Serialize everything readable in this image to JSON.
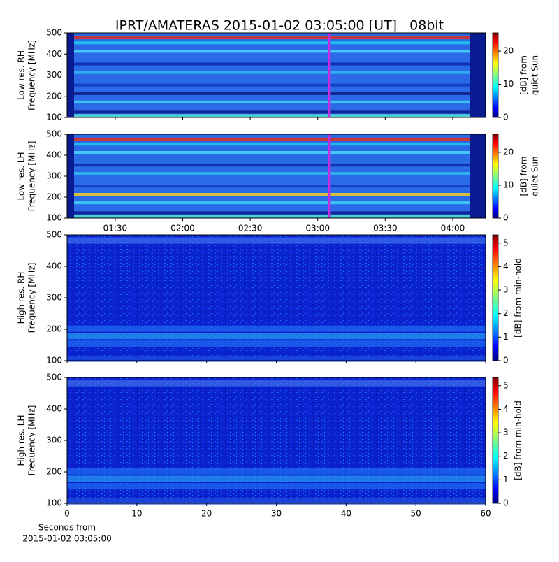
{
  "title": "IPRT/AMATERAS 2015-01-02 03:05:00 [UT]   08bit",
  "xlabel": [
    "Seconds from",
    "2015-01-02 03:05:00"
  ],
  "chart_data": [
    {
      "type": "heatmap",
      "ylabel": [
        "Low res. RH",
        "Frequency [MHz]"
      ],
      "ylim": [
        100,
        500
      ],
      "yticks": [
        100,
        200,
        300,
        400,
        500
      ],
      "xlim": [
        68.6,
        254.6
      ],
      "marker_x": 185,
      "marker_color": "#c030e0",
      "clim": [
        0,
        25.5
      ],
      "cticks": [
        0,
        10,
        20
      ],
      "clabel": [
        "[dB] from",
        "quiet Sun"
      ],
      "colormap": "jet"
    },
    {
      "type": "heatmap",
      "ylabel": [
        "Low res. LH",
        "Frequency [MHz]"
      ],
      "ylim": [
        100,
        500
      ],
      "yticks": [
        100,
        200,
        300,
        400,
        500
      ],
      "xlim": [
        68.6,
        254.6
      ],
      "marker_x": 185,
      "marker_color": "#c030e0",
      "xticks": [
        {
          "value": 90,
          "label": "01:30"
        },
        {
          "value": 120,
          "label": "02:00"
        },
        {
          "value": 150,
          "label": "02:30"
        },
        {
          "value": 180,
          "label": "03:00"
        },
        {
          "value": 210,
          "label": "03:30"
        },
        {
          "value": 240,
          "label": "04:00"
        }
      ],
      "clim": [
        0,
        25.5
      ],
      "cticks": [
        0,
        10,
        20
      ],
      "clabel": [
        "[dB] from",
        "quiet Sun"
      ],
      "colormap": "jet"
    },
    {
      "type": "heatmap",
      "ylabel": [
        "High res. RH",
        "Frequency [MHz]"
      ],
      "ylim": [
        100,
        500
      ],
      "yticks": [
        100,
        200,
        300,
        400,
        500
      ],
      "xlim": [
        0,
        60
      ],
      "clim": [
        0,
        5.35
      ],
      "cticks": [
        0,
        1,
        2,
        3,
        4,
        5
      ],
      "clabel": [
        "[dB] from min-hold"
      ],
      "colormap": "jet"
    },
    {
      "type": "heatmap",
      "ylabel": [
        "High res. LH",
        "Frequency [MHz]"
      ],
      "ylim": [
        100,
        500
      ],
      "yticks": [
        100,
        200,
        300,
        400,
        500
      ],
      "xlim": [
        0,
        60
      ],
      "xticks": [
        0,
        10,
        20,
        30,
        40,
        50,
        60
      ],
      "clim": [
        0,
        5.35
      ],
      "cticks": [
        0,
        1,
        2,
        3,
        4,
        5
      ],
      "clabel": [
        "[dB] from min-hold"
      ],
      "colormap": "jet"
    }
  ]
}
